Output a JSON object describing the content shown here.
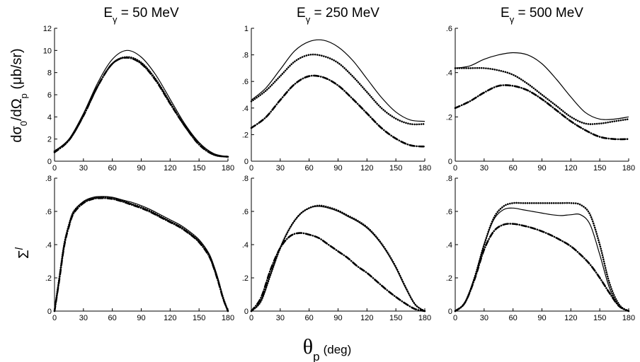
{
  "figure": {
    "xlabel": {
      "symbol": "θ",
      "sub": "p",
      "unit": "(deg)"
    },
    "row_labels": [
      {
        "parts": [
          "dσ",
          "0",
          "/dΩ",
          "p",
          " (μb/sr)"
        ]
      },
      {
        "parts": [
          "Σ",
          "l"
        ]
      }
    ]
  },
  "chart_data": [
    {
      "type": "line",
      "row": 0,
      "col": 0,
      "title": {
        "base": "E",
        "sub": "γ",
        "rest": " = 50 MeV"
      },
      "xlim": [
        0,
        180
      ],
      "xticks": [
        0,
        30,
        60,
        90,
        120,
        150,
        180
      ],
      "ylim": [
        0,
        12
      ],
      "yticks": [
        0,
        2,
        4,
        6,
        8,
        10,
        12
      ],
      "x": [
        0,
        15,
        30,
        45,
        60,
        75,
        90,
        105,
        120,
        135,
        150,
        165,
        180
      ],
      "series": [
        {
          "style": "solid",
          "values": [
            0.9,
            2.0,
            4.3,
            7.1,
            9.2,
            10.0,
            9.4,
            7.8,
            5.6,
            3.4,
            1.7,
            0.7,
            0.4
          ]
        },
        {
          "style": "dotted",
          "values": [
            0.9,
            1.9,
            4.1,
            6.8,
            8.8,
            9.4,
            8.9,
            7.4,
            5.3,
            3.2,
            1.6,
            0.6,
            0.4
          ]
        },
        {
          "style": "dash-dot",
          "values": [
            0.8,
            1.9,
            4.1,
            6.8,
            8.8,
            9.35,
            8.8,
            7.3,
            5.2,
            3.2,
            1.5,
            0.6,
            0.4
          ]
        }
      ]
    },
    {
      "type": "line",
      "row": 0,
      "col": 1,
      "title": {
        "base": "E",
        "sub": "γ",
        "rest": " = 250 MeV"
      },
      "xlim": [
        0,
        180
      ],
      "xticks": [
        0,
        30,
        60,
        90,
        120,
        150,
        180
      ],
      "ylim": [
        0,
        1
      ],
      "yticks": [
        0,
        0.2,
        0.4,
        0.6,
        0.8,
        1
      ],
      "x": [
        0,
        15,
        30,
        45,
        60,
        75,
        90,
        105,
        120,
        135,
        150,
        165,
        180
      ],
      "series": [
        {
          "style": "solid",
          "values": [
            0.46,
            0.55,
            0.69,
            0.83,
            0.9,
            0.91,
            0.86,
            0.76,
            0.62,
            0.48,
            0.37,
            0.31,
            0.3
          ]
        },
        {
          "style": "dotted",
          "values": [
            0.45,
            0.53,
            0.64,
            0.75,
            0.8,
            0.79,
            0.74,
            0.64,
            0.52,
            0.4,
            0.32,
            0.28,
            0.28
          ]
        },
        {
          "style": "dash-dot",
          "values": [
            0.25,
            0.33,
            0.46,
            0.58,
            0.64,
            0.63,
            0.57,
            0.47,
            0.36,
            0.25,
            0.17,
            0.12,
            0.11
          ]
        }
      ]
    },
    {
      "type": "line",
      "row": 0,
      "col": 2,
      "title": {
        "base": "E",
        "sub": "γ",
        "rest": " = 500 MeV"
      },
      "xlim": [
        0,
        180
      ],
      "xticks": [
        0,
        30,
        60,
        90,
        120,
        150,
        180
      ],
      "ylim": [
        0,
        0.6
      ],
      "yticks": [
        0,
        0.2,
        0.4,
        0.6
      ],
      "x": [
        0,
        15,
        30,
        45,
        60,
        75,
        90,
        105,
        120,
        135,
        150,
        165,
        180
      ],
      "series": [
        {
          "style": "solid",
          "values": [
            0.42,
            0.43,
            0.46,
            0.48,
            0.49,
            0.48,
            0.44,
            0.37,
            0.29,
            0.22,
            0.19,
            0.19,
            0.2
          ]
        },
        {
          "style": "dotted",
          "values": [
            0.42,
            0.42,
            0.42,
            0.41,
            0.39,
            0.35,
            0.3,
            0.25,
            0.2,
            0.17,
            0.17,
            0.18,
            0.19
          ]
        },
        {
          "style": "dash-dot",
          "values": [
            0.24,
            0.27,
            0.31,
            0.34,
            0.34,
            0.32,
            0.28,
            0.23,
            0.18,
            0.14,
            0.11,
            0.1,
            0.1
          ]
        }
      ]
    },
    {
      "type": "line",
      "row": 1,
      "col": 0,
      "title": null,
      "xlim": [
        0,
        180
      ],
      "xticks": [
        0,
        30,
        60,
        90,
        120,
        150,
        180
      ],
      "ylim": [
        0,
        0.8
      ],
      "yticks": [
        0,
        0.2,
        0.4,
        0.6,
        0.8
      ],
      "x": [
        0,
        5,
        10,
        15,
        20,
        30,
        40,
        50,
        60,
        70,
        80,
        90,
        100,
        110,
        120,
        130,
        140,
        150,
        160,
        165,
        170,
        175,
        180
      ],
      "series": [
        {
          "style": "solid",
          "values": [
            0,
            0.2,
            0.4,
            0.52,
            0.6,
            0.66,
            0.685,
            0.69,
            0.685,
            0.67,
            0.655,
            0.635,
            0.61,
            0.58,
            0.55,
            0.52,
            0.48,
            0.43,
            0.35,
            0.28,
            0.19,
            0.08,
            0
          ]
        },
        {
          "style": "dotted",
          "values": [
            0,
            0.2,
            0.4,
            0.52,
            0.6,
            0.655,
            0.68,
            0.685,
            0.68,
            0.665,
            0.645,
            0.625,
            0.6,
            0.57,
            0.54,
            0.51,
            0.47,
            0.42,
            0.34,
            0.27,
            0.18,
            0.08,
            0
          ]
        },
        {
          "style": "dash-dot",
          "values": [
            0,
            0.19,
            0.39,
            0.51,
            0.59,
            0.65,
            0.675,
            0.68,
            0.675,
            0.66,
            0.64,
            0.62,
            0.595,
            0.565,
            0.535,
            0.505,
            0.465,
            0.415,
            0.335,
            0.265,
            0.175,
            0.075,
            0
          ]
        }
      ]
    },
    {
      "type": "line",
      "row": 1,
      "col": 1,
      "title": null,
      "xlim": [
        0,
        180
      ],
      "xticks": [
        0,
        30,
        60,
        90,
        120,
        150,
        180
      ],
      "ylim": [
        0,
        0.8
      ],
      "yticks": [
        0,
        0.2,
        0.4,
        0.6,
        0.8
      ],
      "x": [
        0,
        10,
        20,
        30,
        40,
        50,
        60,
        70,
        80,
        90,
        100,
        110,
        120,
        130,
        140,
        150,
        160,
        170,
        180
      ],
      "series": [
        {
          "style": "solid",
          "values": [
            0,
            0.06,
            0.22,
            0.38,
            0.5,
            0.58,
            0.62,
            0.63,
            0.62,
            0.6,
            0.57,
            0.54,
            0.5,
            0.44,
            0.36,
            0.26,
            0.14,
            0.04,
            0
          ]
        },
        {
          "style": "dotted",
          "values": [
            0,
            0.06,
            0.22,
            0.38,
            0.5,
            0.58,
            0.62,
            0.635,
            0.625,
            0.605,
            0.575,
            0.545,
            0.505,
            0.445,
            0.365,
            0.265,
            0.145,
            0.04,
            0
          ]
        },
        {
          "style": "dash-dot",
          "values": [
            0,
            0.08,
            0.25,
            0.38,
            0.45,
            0.47,
            0.46,
            0.44,
            0.4,
            0.36,
            0.32,
            0.27,
            0.23,
            0.18,
            0.13,
            0.085,
            0.045,
            0.012,
            0
          ]
        }
      ]
    },
    {
      "type": "line",
      "row": 1,
      "col": 2,
      "title": null,
      "xlim": [
        0,
        180
      ],
      "xticks": [
        0,
        30,
        60,
        90,
        120,
        150,
        180
      ],
      "ylim": [
        0,
        0.8
      ],
      "yticks": [
        0,
        0.2,
        0.4,
        0.6,
        0.8
      ],
      "x": [
        0,
        10,
        20,
        30,
        40,
        50,
        60,
        70,
        80,
        90,
        100,
        110,
        120,
        130,
        140,
        150,
        160,
        170,
        180
      ],
      "series": [
        {
          "style": "solid",
          "values": [
            0,
            0.05,
            0.2,
            0.4,
            0.55,
            0.61,
            0.62,
            0.61,
            0.6,
            0.59,
            0.58,
            0.575,
            0.58,
            0.58,
            0.52,
            0.34,
            0.14,
            0.03,
            0
          ]
        },
        {
          "style": "dotted",
          "values": [
            0,
            0.05,
            0.2,
            0.4,
            0.56,
            0.63,
            0.65,
            0.65,
            0.65,
            0.65,
            0.65,
            0.65,
            0.65,
            0.64,
            0.58,
            0.4,
            0.17,
            0.04,
            0
          ]
        },
        {
          "style": "dash-dot",
          "values": [
            0,
            0.05,
            0.19,
            0.37,
            0.48,
            0.52,
            0.525,
            0.515,
            0.5,
            0.48,
            0.455,
            0.425,
            0.39,
            0.34,
            0.28,
            0.2,
            0.11,
            0.03,
            0
          ]
        }
      ]
    }
  ]
}
